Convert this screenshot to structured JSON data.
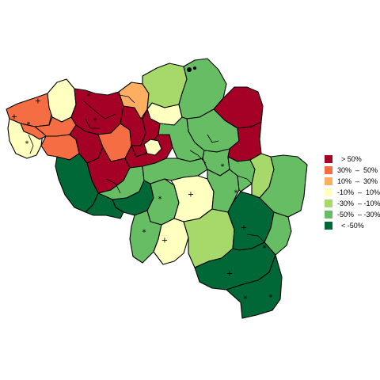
{
  "legend": {
    "classes": [
      {
        "key": "c1",
        "label": "  > 50%",
        "color": "#a50026"
      },
      {
        "key": "c2",
        "label": "30%  –  50%",
        "color": "#f46d43"
      },
      {
        "key": "c3",
        "label": "10%  –  30%",
        "color": "#fdae61"
      },
      {
        "key": "c4",
        "label": "-10%  –  10%",
        "color": "#ffffbf"
      },
      {
        "key": "c5",
        "label": "-30%  – -10%",
        "color": "#a6d96a"
      },
      {
        "key": "c6",
        "label": "-50%  – -30%",
        "color": "#66bd63"
      },
      {
        "key": "c7",
        "label": "  < -50%",
        "color": "#006837"
      }
    ]
  },
  "markers": {
    "plus": "+",
    "star": "*"
  },
  "regions": [
    {
      "id": "koksijde-veurne",
      "class": "c2"
    },
    {
      "id": "oostende-brugge",
      "class": "c2"
    },
    {
      "id": "brugge",
      "class": "c4"
    },
    {
      "id": "tielt-roeselare",
      "class": "c2"
    },
    {
      "id": "ieper",
      "class": "c4"
    },
    {
      "id": "kortrijk",
      "class": "c2"
    },
    {
      "id": "eeklo-gent",
      "class": "c1"
    },
    {
      "id": "sint-niklaas",
      "class": "c1"
    },
    {
      "id": "dendermonde",
      "class": "c2"
    },
    {
      "id": "aalst",
      "class": "c1"
    },
    {
      "id": "oudenaarde",
      "class": "c1"
    },
    {
      "id": "antwerpen",
      "class": "c3"
    },
    {
      "id": "mechelen",
      "class": "c1"
    },
    {
      "id": "turnhout",
      "class": "c5"
    },
    {
      "id": "mol",
      "class": "c6"
    },
    {
      "id": "lier",
      "class": "c4"
    },
    {
      "id": "maaseik",
      "class": "c1"
    },
    {
      "id": "hasselt",
      "class": "c6"
    },
    {
      "id": "tongeren",
      "class": "c1"
    },
    {
      "id": "leuven",
      "class": "c6"
    },
    {
      "id": "brussel",
      "class": "c4"
    },
    {
      "id": "halle-vilvoorde",
      "class": "c1"
    },
    {
      "id": "nivelles",
      "class": "c6"
    },
    {
      "id": "tournai-mouscron",
      "class": "c7"
    },
    {
      "id": "ath",
      "class": "c6"
    },
    {
      "id": "soignies",
      "class": "c7"
    },
    {
      "id": "mons",
      "class": "c7"
    },
    {
      "id": "charleroi",
      "class": "c6"
    },
    {
      "id": "thuin",
      "class": "c6"
    },
    {
      "id": "namur",
      "class": "c4"
    },
    {
      "id": "philippeville",
      "class": "c4"
    },
    {
      "id": "dinant",
      "class": "c5"
    },
    {
      "id": "huy",
      "class": "c6"
    },
    {
      "id": "waremme",
      "class": "c6"
    },
    {
      "id": "liege",
      "class": "c6"
    },
    {
      "id": "verviers-north",
      "class": "c5"
    },
    {
      "id": "eupen-verviers",
      "class": "c6"
    },
    {
      "id": "marche",
      "class": "c7"
    },
    {
      "id": "bastogne",
      "class": "c6"
    },
    {
      "id": "neufchateau",
      "class": "c7"
    },
    {
      "id": "virton-arlon",
      "class": "c7"
    }
  ]
}
